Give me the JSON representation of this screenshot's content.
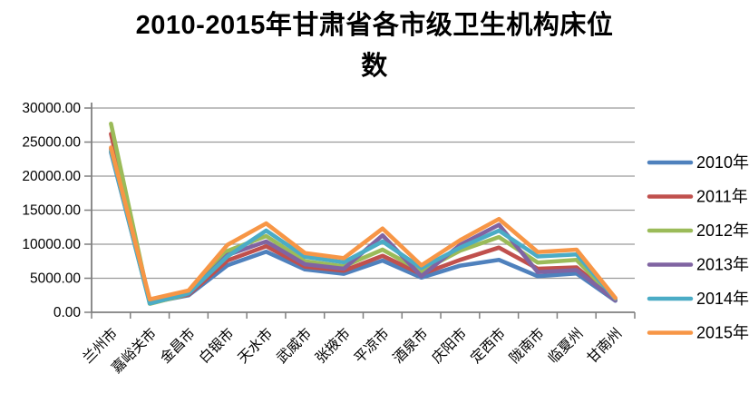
{
  "title": {
    "full": "2010-2015年甘肃省各市级卫生机构床位数",
    "line1": "2010-2015年甘肃省各市级卫生机构床位",
    "line2": "数"
  },
  "colors": {
    "background": "#ffffff",
    "gridline": "#9a9a9a",
    "axis": "#7f7f7f",
    "text": "#000000"
  },
  "chart_data": {
    "type": "line",
    "title": "2010-2015年甘肃省各市级卫生机构床位数",
    "xlabel": "",
    "ylabel": "",
    "ylim": [
      0,
      30000
    ],
    "y_step": 5000,
    "grid": true,
    "legend_position": "right",
    "y_ticks": [
      "30000.00",
      "25000.00",
      "20000.00",
      "15000.00",
      "10000.00",
      "5000.00",
      "0.00"
    ],
    "categories": [
      "兰州市",
      "嘉峪关市",
      "金昌市",
      "白银市",
      "天水市",
      "武威市",
      "张掖市",
      "平凉市",
      "酒泉市",
      "庆阳市",
      "定西市",
      "陇南市",
      "临夏州",
      "甘南州"
    ],
    "series": [
      {
        "name": "2010年",
        "color": "#4F81BD",
        "values": [
          23500,
          1400,
          2500,
          6900,
          8900,
          6300,
          5650,
          7600,
          5100,
          6850,
          7700,
          5300,
          5700,
          1700
        ]
      },
      {
        "name": "2011年",
        "color": "#C0504D",
        "values": [
          26200,
          1500,
          2600,
          7600,
          9700,
          6700,
          6100,
          8300,
          5600,
          7700,
          9500,
          6400,
          6600,
          1800
        ]
      },
      {
        "name": "2012年",
        "color": "#9BBB59",
        "values": [
          27700,
          1250,
          2700,
          9000,
          11200,
          7500,
          6750,
          9200,
          6050,
          9050,
          11050,
          7300,
          7700,
          1900
        ]
      },
      {
        "name": "2013年",
        "color": "#8064A2",
        "values": [
          24000,
          1600,
          2700,
          8400,
          10400,
          7050,
          6400,
          11300,
          5300,
          9900,
          12850,
          5900,
          6200,
          1750
        ]
      },
      {
        "name": "2014年",
        "color": "#4BACC6",
        "values": [
          23700,
          1300,
          2800,
          8200,
          12000,
          8150,
          7350,
          10400,
          6500,
          9500,
          12000,
          8200,
          8500,
          2000
        ]
      },
      {
        "name": "2015年",
        "color": "#F79646",
        "values": [
          24200,
          1900,
          3200,
          9900,
          13050,
          8700,
          7950,
          12300,
          6900,
          10600,
          13700,
          8850,
          9200,
          2100
        ]
      }
    ]
  }
}
